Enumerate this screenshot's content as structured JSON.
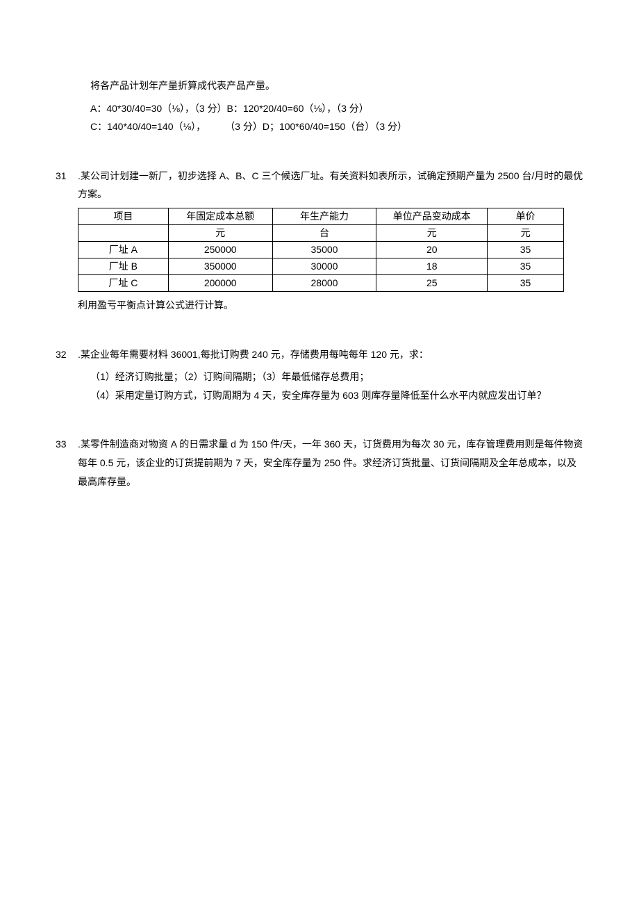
{
  "intro": {
    "line1": "将各产品计划年产量折算成代表产品产量。",
    "line2": "A：40*30/40=30（⅛），（3 分）B：120*20/40=60（⅛），（3 分）",
    "line3": "C：140*40/40=140（⅛），  （3 分）D；100*60/40=150（台）（3 分）"
  },
  "q31": {
    "num": "31",
    "dot": ".",
    "para1": "某公司计划建一新厂，初步选择 A、B、C 三个候选厂址。有关资料如表所示，试确定预期产量为 2500 台/月时的最优方案。",
    "table": {
      "headers": [
        "项目",
        "年固定成本总额",
        "年生产能力",
        "单位产品变动成本",
        "单价"
      ],
      "units": [
        "",
        "元",
        "台",
        "元",
        "元"
      ],
      "rows": [
        [
          "厂址 A",
          "250000",
          "35000",
          "20",
          "35"
        ],
        [
          "厂址 B",
          "350000",
          "30000",
          "18",
          "35"
        ],
        [
          "厂址 C",
          "200000",
          "28000",
          "25",
          "35"
        ]
      ],
      "col_widths": [
        "130px",
        "150px",
        "150px",
        "160px",
        "110px"
      ]
    },
    "para2": "利用盈亏平衡点计算公式进行计算。"
  },
  "q32": {
    "num": "32",
    "dot": ".",
    "para1": "某企业每年需要材料 36001,每批订购费 240 元，存储费用每吨每年 120 元，求：",
    "sub1": "（1）经济订购批量；（2）订购间隔期；（3）年最低储存总费用；",
    "sub2": "（4）采用定量订购方式，订购周期为 4 天，安全库存量为 603 则库存量降低至什么水平内就应发出订单？"
  },
  "q33": {
    "num": "33",
    "dot": ".",
    "para1": "某零件制造商对物资 A 的日需求量 d 为 150 件/天，一年 360 天，订货费用为每次 30 元，库存管理费用则是每件物资每年 0.5 元，该企业的订货提前期为 7 天，安全库存量为 250 件。求经济订货批量、订货间隔期及全年总成本，以及最高库存量。"
  }
}
